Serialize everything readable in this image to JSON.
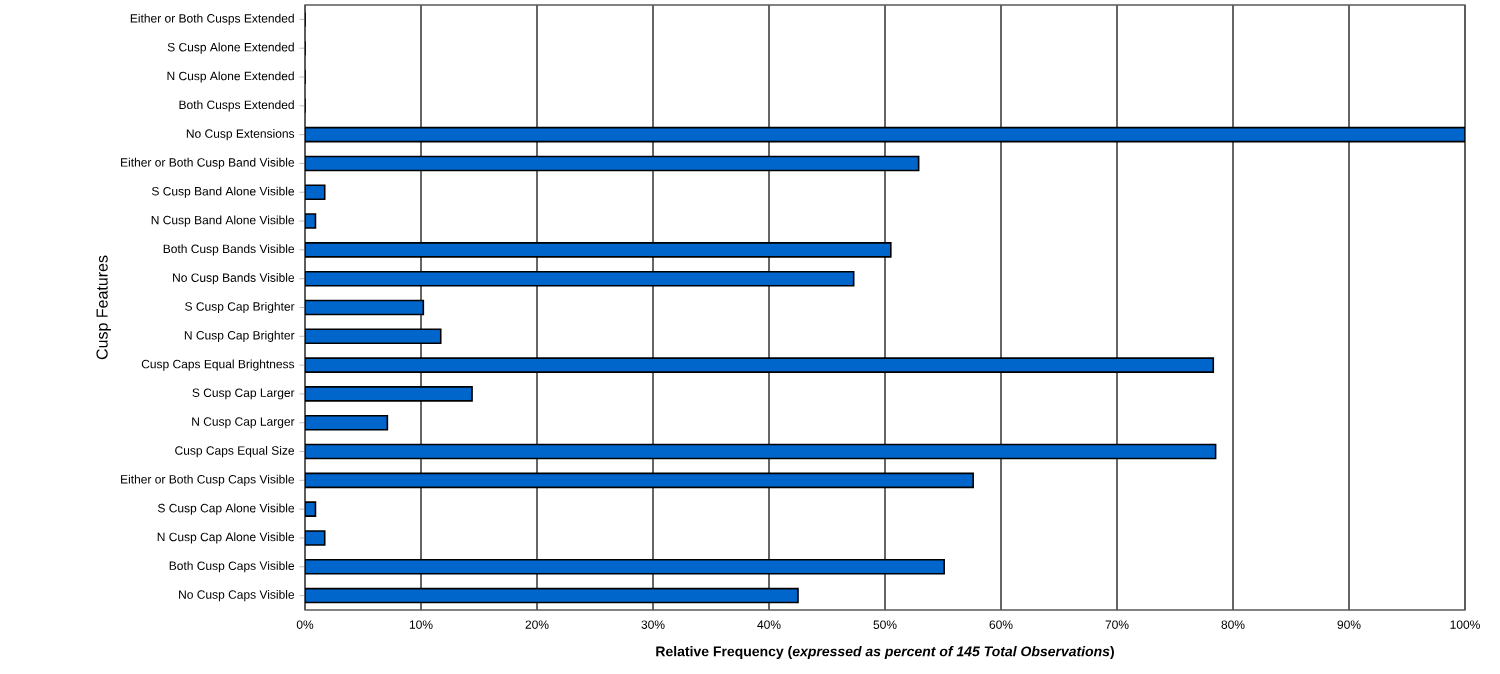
{
  "chart_data": {
    "type": "bar",
    "orientation": "horizontal",
    "xlabel": "Relative Frequency (*expressed as percent of 145 Total Observations*)",
    "ylabel": "Cusp Features",
    "categories": [
      "Either or Both Cusps Extended",
      "S Cusp Alone Extended",
      "N Cusp Alone Extended",
      "Both Cusps Extended",
      "No Cusp Extensions",
      "Either or Both Cusp Band Visible",
      "S Cusp Band Alone Visible",
      "N Cusp Band Alone Visible",
      "Both Cusp Bands Visible",
      "No Cusp Bands Visible",
      "S Cusp Cap Brighter",
      "N Cusp Cap Brighter",
      "Cusp Caps Equal Brightness",
      "S Cusp Cap Larger",
      "N Cusp Cap Larger",
      "Cusp Caps Equal Size",
      "Either or Both Cusp Caps Visible",
      "S Cusp Cap Alone Visible",
      "N Cusp Cap Alone Visible",
      "Both Cusp Caps Visible",
      "No Cusp Caps Visible"
    ],
    "values": [
      0,
      0,
      0,
      0,
      100,
      52.9,
      1.7,
      0.9,
      50.5,
      47.3,
      10.2,
      11.7,
      78.3,
      14.4,
      7.1,
      78.5,
      57.6,
      0.9,
      1.7,
      55.1,
      42.5
    ],
    "color": "#0066cc",
    "xlim": [
      0,
      100
    ],
    "xticks": [
      {
        "value": 0,
        "label": "0%"
      },
      {
        "value": 10,
        "label": "10%"
      },
      {
        "value": 20,
        "label": "20%"
      },
      {
        "value": 30,
        "label": "30%"
      },
      {
        "value": 40,
        "label": "40%"
      },
      {
        "value": 50,
        "label": "50%"
      },
      {
        "value": 60,
        "label": "60%"
      },
      {
        "value": 70,
        "label": "70%"
      },
      {
        "value": 80,
        "label": "80%"
      },
      {
        "value": 90,
        "label": "90%"
      },
      {
        "value": 100,
        "label": "100%"
      }
    ],
    "grid": "x"
  }
}
